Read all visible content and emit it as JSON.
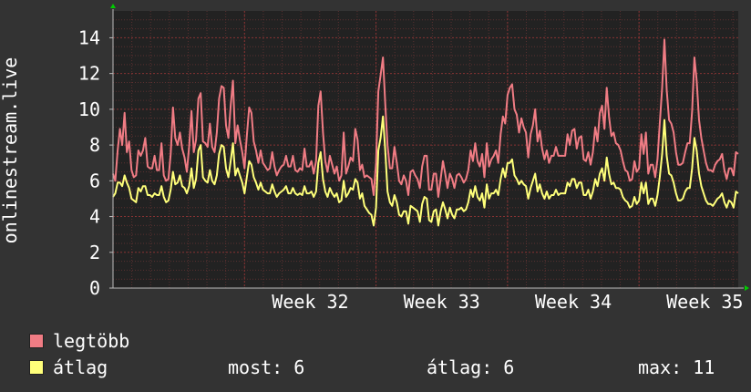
{
  "chart_data": {
    "type": "line",
    "ylabel": "onlinestream.live",
    "ylim": [
      0,
      15.5
    ],
    "yticks": [
      0,
      2,
      4,
      6,
      8,
      10,
      12,
      14
    ],
    "x_week_labels": [
      "Week 32",
      "Week 33",
      "Week 34",
      "Week 35"
    ],
    "grid": true,
    "background": "#222222",
    "grid_color": "#883333",
    "series": [
      {
        "name": "legtöbb",
        "color": "#f07c84",
        "values": [
          6.4,
          6.0,
          7.7,
          8.9,
          8.0,
          9.8,
          7.6,
          8.2,
          6.6,
          6.2,
          6.3,
          7.7,
          7.4,
          7.7,
          8.4,
          6.8,
          6.7,
          6.7,
          7.4,
          6.6,
          6.6,
          8.1,
          6.3,
          6.0,
          6.1,
          7.5,
          10.1,
          8.4,
          8.0,
          8.7,
          7.8,
          7.3,
          6.5,
          7.9,
          9.9,
          7.6,
          8.3,
          10.6,
          10.9,
          8.2,
          8.1,
          7.9,
          9.2,
          7.9,
          7.6,
          8.7,
          10.6,
          11.3,
          11.2,
          9.1,
          8.4,
          10.2,
          11.6,
          8.1,
          9.1,
          8.3,
          7.6,
          6.7,
          8.5,
          10.1,
          9.8,
          8.2,
          7.7,
          7.0,
          7.7,
          7.0,
          6.8,
          6.6,
          6.7,
          7.6,
          6.8,
          6.3,
          6.6,
          6.8,
          6.9,
          7.4,
          6.8,
          6.8,
          7.4,
          6.6,
          6.5,
          6.7,
          6.6,
          7.8,
          6.8,
          6.8,
          7.1,
          6.4,
          7.1,
          10.2,
          11.0,
          8.7,
          7.1,
          6.5,
          7.4,
          6.9,
          6.4,
          6.8,
          6.0,
          6.3,
          8.7,
          6.4,
          6.8,
          7.3,
          7.1,
          8.9,
          8.3,
          6.6,
          6.9,
          6.2,
          6.3,
          6.2,
          6.1,
          5.2,
          7.0,
          11.0,
          11.9,
          12.9,
          10.3,
          8.0,
          6.7,
          6.7,
          7.9,
          7.0,
          6.0,
          5.8,
          6.3,
          6.0,
          5.2,
          6.5,
          6.6,
          6.3,
          6.1,
          5.6,
          6.8,
          7.4,
          7.4,
          5.5,
          5.5,
          6.4,
          6.4,
          5.1,
          6.1,
          7.1,
          6.4,
          5.6,
          6.4,
          6.1,
          5.6,
          6.3,
          6.4,
          6.2,
          5.9,
          6.1,
          6.6,
          7.7,
          7.1,
          8.1,
          7.1,
          6.8,
          7.5,
          6.2,
          8.1,
          6.8,
          7.2,
          7.4,
          7.7,
          7.0,
          8.6,
          9.6,
          9.2,
          10.8,
          11.2,
          11.4,
          10.0,
          9.7,
          8.7,
          9.5,
          9.0,
          8.7,
          7.3,
          8.6,
          9.1,
          10.0,
          8.2,
          8.8,
          7.8,
          7.2,
          7.7,
          7.0,
          7.4,
          7.4,
          7.9,
          7.4,
          7.4,
          7.4,
          7.4,
          8.6,
          8.0,
          8.8,
          8.9,
          7.8,
          8.4,
          8.5,
          7.2,
          7.1,
          7.6,
          6.9,
          7.6,
          9.0,
          8.2,
          9.8,
          10.2,
          8.9,
          11.2,
          9.6,
          8.5,
          8.7,
          8.1,
          8.0,
          7.7,
          7.1,
          6.6,
          6.5,
          6.0,
          6.1,
          7.1,
          6.5,
          6.7,
          8.6,
          7.5,
          8.7,
          6.4,
          6.9,
          6.9,
          6.2,
          7.2,
          9.2,
          11.2,
          13.9,
          11.1,
          9.4,
          9.2,
          8.7,
          7.6,
          6.9,
          6.9,
          7.0,
          7.6,
          8.1,
          8.1,
          9.9,
          12.9,
          11.6,
          9.4,
          8.4,
          7.7,
          7.0,
          6.6,
          6.6,
          6.5,
          6.9,
          7.1,
          7.2,
          7.5,
          6.6,
          6.1,
          6.7,
          6.7,
          6.3,
          7.6,
          7.5
        ]
      },
      {
        "name": "átlag",
        "color": "#ffff7a",
        "values": [
          5.1,
          5.3,
          5.9,
          5.9,
          5.7,
          6.3,
          5.9,
          5.6,
          5.0,
          4.9,
          4.8,
          5.6,
          5.4,
          5.7,
          5.7,
          5.2,
          5.2,
          5.1,
          5.3,
          5.2,
          5.2,
          5.7,
          5.1,
          4.8,
          4.9,
          5.5,
          6.5,
          5.8,
          5.9,
          6.3,
          5.7,
          5.6,
          5.3,
          5.7,
          6.7,
          5.6,
          6.1,
          7.7,
          8.0,
          6.2,
          6.0,
          5.9,
          6.6,
          6.0,
          5.8,
          6.3,
          7.5,
          8.0,
          7.9,
          6.7,
          6.2,
          7.1,
          8.1,
          6.3,
          6.7,
          6.3,
          5.9,
          5.3,
          6.2,
          7.1,
          6.9,
          6.2,
          5.9,
          5.5,
          5.9,
          5.5,
          5.4,
          5.3,
          5.3,
          5.8,
          5.4,
          5.1,
          5.3,
          5.4,
          5.5,
          5.7,
          5.3,
          5.3,
          5.6,
          5.3,
          5.2,
          5.3,
          5.2,
          5.7,
          5.3,
          5.3,
          5.4,
          5.1,
          5.4,
          7.0,
          7.6,
          6.1,
          5.4,
          5.1,
          5.6,
          5.3,
          5.1,
          5.3,
          4.8,
          4.9,
          6.0,
          5.1,
          5.3,
          5.6,
          5.5,
          6.1,
          5.9,
          5.0,
          5.3,
          4.6,
          4.4,
          4.2,
          4.1,
          3.5,
          4.5,
          7.7,
          8.4,
          9.6,
          7.7,
          5.4,
          4.8,
          4.6,
          5.2,
          4.8,
          4.1,
          4.0,
          4.3,
          4.3,
          3.6,
          4.6,
          4.5,
          4.4,
          4.3,
          3.7,
          4.7,
          5.1,
          5.0,
          3.8,
          3.7,
          4.3,
          4.4,
          3.5,
          4.3,
          4.8,
          4.4,
          3.9,
          4.5,
          4.1,
          3.9,
          4.4,
          4.4,
          4.5,
          4.3,
          4.4,
          4.8,
          5.5,
          5.1,
          5.7,
          5.1,
          4.9,
          5.3,
          4.5,
          5.8,
          5.0,
          5.3,
          5.3,
          5.5,
          5.2,
          6.1,
          6.7,
          6.2,
          7.0,
          7.0,
          7.2,
          6.3,
          6.1,
          5.8,
          6.0,
          5.8,
          5.7,
          5.0,
          5.6,
          6.0,
          6.4,
          5.4,
          5.8,
          5.3,
          5.0,
          5.4,
          5.0,
          5.2,
          5.2,
          5.5,
          5.2,
          5.3,
          5.3,
          5.3,
          5.9,
          5.7,
          6.1,
          6.1,
          5.6,
          5.9,
          5.9,
          5.2,
          5.2,
          5.5,
          5.0,
          5.4,
          6.1,
          5.7,
          6.4,
          6.7,
          6.0,
          7.3,
          6.4,
          5.8,
          5.9,
          5.6,
          5.6,
          5.5,
          5.1,
          4.9,
          4.8,
          4.5,
          4.6,
          5.1,
          4.7,
          4.9,
          5.9,
          5.3,
          5.9,
          4.7,
          5.0,
          5.0,
          4.6,
          5.2,
          6.2,
          7.5,
          9.4,
          7.4,
          6.4,
          6.3,
          5.9,
          5.3,
          4.9,
          4.9,
          5.0,
          5.4,
          5.6,
          5.6,
          6.7,
          8.4,
          7.7,
          6.4,
          5.7,
          5.3,
          4.9,
          4.7,
          4.7,
          4.6,
          4.8,
          5.0,
          5.1,
          5.3,
          4.8,
          4.5,
          4.9,
          4.8,
          4.5,
          5.4,
          5.3
        ]
      }
    ]
  },
  "legend": {
    "items": [
      {
        "label": "legtöbb",
        "color": "#f07c84"
      },
      {
        "label": "átlag",
        "color": "#ffff7a"
      }
    ]
  },
  "stats": {
    "most": "most: 6",
    "atlag": "átlag: 6",
    "max": "max: 11"
  }
}
